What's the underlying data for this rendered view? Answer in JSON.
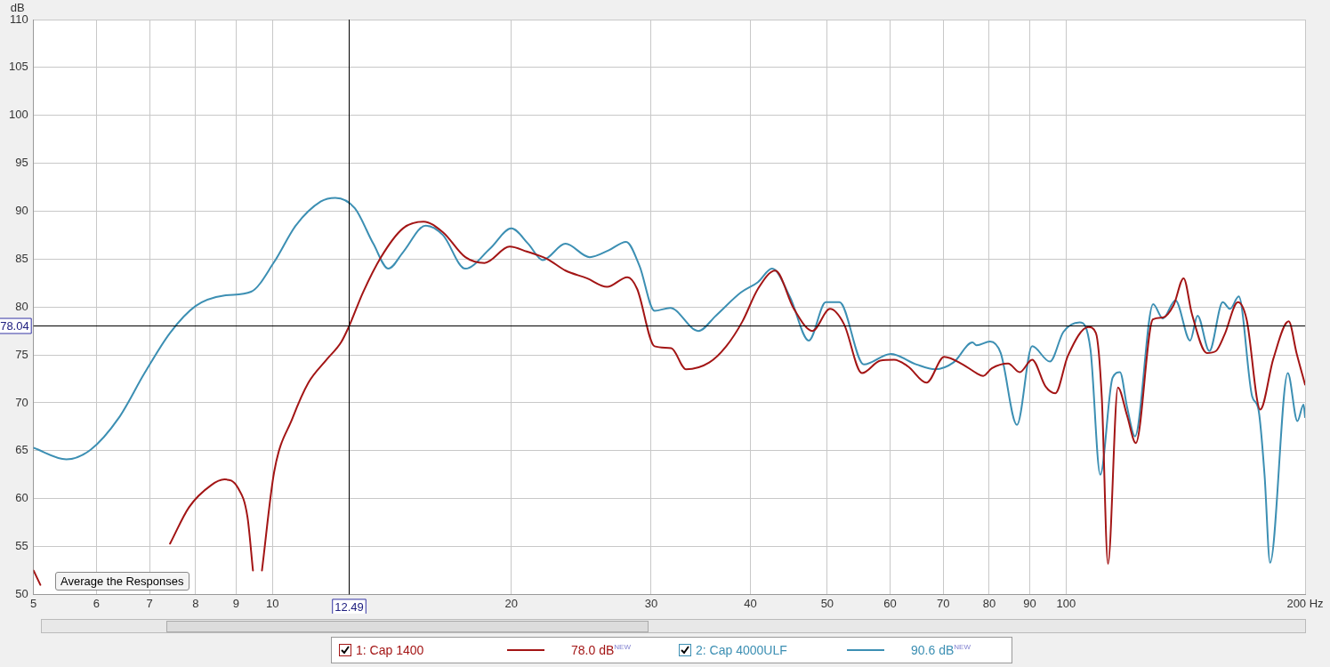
{
  "chart_data": {
    "type": "line",
    "ylabel": "dB",
    "log": "x",
    "grid": true,
    "legend": "bottom",
    "marker": "none",
    "line_style": "solid",
    "xlim": [
      5,
      200
    ],
    "ylim": [
      50,
      110
    ],
    "xticks": [
      5,
      6,
      7,
      8,
      9,
      10,
      20,
      30,
      40,
      50,
      60,
      70,
      80,
      90,
      100,
      {
        "value": 200,
        "label": "200 Hz"
      }
    ],
    "yticks": [
      50,
      55,
      60,
      65,
      70,
      75,
      80,
      85,
      90,
      95,
      100,
      105,
      110
    ],
    "ref_lines": [
      {
        "axis": "x",
        "value": 12.49,
        "label": "12.49",
        "color": "#000000"
      },
      {
        "axis": "y",
        "value": 78.04,
        "label": "78.04",
        "color": "#000000"
      }
    ],
    "annotations": [
      "Average the Responses",
      "78.0 dB$^{NEW}$",
      "90.6 dB$^{NEW}$"
    ],
    "series": [
      {
        "name": "1: Cap 1400",
        "color": "#a31515",
        "x": [
          5,
          5.1,
          6,
          7.43,
          7.85,
          8.37,
          8.7,
          9.05,
          9.3,
          9.45,
          9.58,
          9.7,
          10.05,
          10.6,
          11.1,
          11.7,
          12.2,
          12.49,
          13.0,
          13.7,
          14.6,
          15.5,
          16.4,
          17.5,
          18.5,
          19.9,
          20.9,
          22.2,
          23.4,
          24.9,
          26.4,
          28.0,
          28.8,
          30.3,
          31.8,
          33.2,
          35.5,
          37.3,
          39.1,
          40.9,
          43.0,
          45.4,
          47.9,
          50.4,
          52.5,
          55.3,
          58.3,
          60.7,
          63.2,
          66.7,
          70.2,
          74.1,
          77.1,
          78.6,
          80.6,
          84.5,
          87.4,
          90.6,
          94.2,
          96.9,
          100.5,
          106.7,
          109.0,
          110.9,
          112.9,
          116.2,
          119.3,
          122.4,
          128.6,
          132.4,
          136.6,
          140.6,
          144.0,
          150.4,
          154.4,
          158.3,
          164.6,
          168.8,
          175.6,
          182.4,
          190.7,
          195.1,
          200
        ],
        "values": [
          52.5,
          51.0,
          null,
          55.3,
          59.1,
          61.4,
          62.0,
          61.1,
          58.1,
          52.5,
          null,
          52.5,
          62.8,
          68.4,
          72.1,
          74.5,
          76.3,
          78.0,
          81.5,
          85.2,
          88.2,
          88.9,
          87.8,
          85.2,
          84.6,
          86.3,
          85.8,
          85.0,
          83.8,
          83.0,
          82.1,
          83.1,
          81.9,
          75.9,
          75.7,
          73.5,
          74.2,
          75.9,
          78.5,
          81.9,
          83.8,
          79.8,
          77.5,
          79.8,
          78.2,
          73.1,
          74.4,
          74.5,
          73.8,
          72.1,
          74.8,
          74.0,
          73.1,
          72.8,
          73.6,
          74.1,
          73.2,
          74.5,
          71.7,
          71.0,
          74.9,
          77.9,
          77.3,
          70.5,
          53.2,
          71.6,
          68.7,
          65.8,
          78.7,
          78.9,
          80.2,
          83.0,
          79.3,
          75.2,
          75.4,
          77.1,
          80.5,
          78.7,
          69.3,
          74.6,
          78.5,
          75.2,
          71.9
        ]
      },
      {
        "name": "2: Cap 4000ULF",
        "color": "#3c8fb3",
        "x": [
          5,
          5.5,
          5.9,
          6.4,
          6.9,
          7.43,
          8.0,
          8.7,
          9.4,
          10.05,
          10.7,
          11.5,
          12.0,
          12.7,
          13.4,
          14.0,
          14.6,
          15.6,
          16.4,
          17.5,
          18.8,
          20.0,
          21.0,
          21.9,
          23.4,
          25.1,
          26.5,
          27.9,
          29.0,
          30.3,
          31.7,
          34.4,
          36.2,
          38.9,
          40.9,
          42.6,
          44.9,
          47.4,
          49.8,
          51.8,
          55.6,
          60.1,
          64.8,
          68.4,
          72.1,
          76.2,
          77.1,
          80.2,
          82.7,
          86.7,
          90.6,
          95.4,
          99.2,
          104,
          107.3,
          110.4,
          114.4,
          116.9,
          119.3,
          122.1,
          128.7,
          132.4,
          137.3,
          143.3,
          146.4,
          151.5,
          157.5,
          160.9,
          165.0,
          171.5,
          174.7,
          177.8,
          180.7,
          190.2,
          195.6,
          199.1,
          200
        ],
        "values": [
          65.3,
          64.1,
          65.1,
          68.4,
          73.1,
          77.3,
          80.1,
          81.2,
          81.6,
          84.7,
          88.5,
          91.0,
          91.4,
          90.3,
          86.6,
          84.0,
          85.7,
          88.5,
          87.5,
          84.0,
          86.1,
          88.2,
          86.6,
          84.9,
          86.6,
          85.2,
          85.9,
          86.8,
          84.3,
          79.6,
          79.9,
          77.5,
          79.1,
          81.5,
          82.6,
          84.0,
          81.0,
          76.5,
          80.5,
          80.5,
          74.0,
          75.1,
          74.0,
          73.5,
          74.2,
          76.3,
          76.0,
          76.4,
          75.2,
          67.7,
          75.9,
          74.3,
          77.4,
          78.4,
          75.6,
          62.5,
          72.6,
          73.2,
          69.6,
          66.5,
          80.3,
          78.8,
          80.7,
          76.5,
          79.1,
          75.4,
          80.5,
          79.8,
          81.1,
          70.7,
          69.3,
          62.5,
          53.3,
          73.1,
          68.1,
          69.8,
          68.5
        ]
      }
    ]
  }
}
